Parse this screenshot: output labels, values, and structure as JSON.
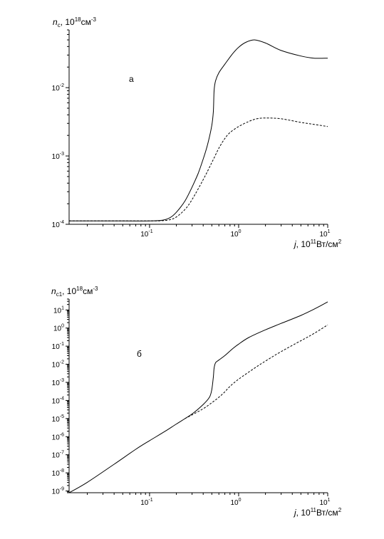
{
  "chart_data": [
    {
      "type": "line",
      "panel_label": "а",
      "xscale": "log",
      "yscale": "log",
      "xlim": [
        0.0125,
        10
      ],
      "ylim": [
        0.0001,
        0.07
      ],
      "xlabel": {
        "main": "j",
        "mid": ", 10",
        "sup": "11",
        "unit": "Вт/см",
        "unit_sup": "2"
      },
      "ylabel": {
        "main": "n",
        "sub": "c",
        "mid": ", 10",
        "sup": "18",
        "unit": "см",
        "unit_sup": "-3"
      },
      "x_ticks": [
        {
          "base": "10",
          "exp": "-1",
          "value": 0.1
        },
        {
          "base": "10",
          "exp": "0",
          "value": 1
        },
        {
          "base": "10",
          "exp": "1",
          "value": 10
        }
      ],
      "y_ticks": [
        {
          "base": "10",
          "exp": "-4",
          "value": 0.0001
        },
        {
          "base": "10",
          "exp": "-3",
          "value": 0.001
        },
        {
          "base": "10",
          "exp": "-2",
          "value": 0.01
        }
      ],
      "series": [
        {
          "style": "solid",
          "x": [
            0.0125,
            0.05,
            0.1,
            0.14,
            0.17,
            0.2,
            0.25,
            0.3,
            0.35,
            0.4,
            0.45,
            0.5,
            0.52,
            0.53,
            0.55,
            0.6,
            0.7,
            0.85,
            1.0,
            1.2,
            1.5,
            2.0,
            3.0,
            5.0,
            7.0,
            10.0
          ],
          "y": [
            0.000112,
            0.000112,
            0.000112,
            0.000115,
            0.000125,
            0.00015,
            0.00022,
            0.00035,
            0.00055,
            0.0009,
            0.0015,
            0.0028,
            0.0045,
            0.009,
            0.0125,
            0.0165,
            0.022,
            0.031,
            0.039,
            0.046,
            0.05,
            0.045,
            0.035,
            0.029,
            0.027,
            0.027
          ]
        },
        {
          "style": "dashed",
          "x": [
            0.0125,
            0.1,
            0.14,
            0.17,
            0.2,
            0.25,
            0.3,
            0.4,
            0.5,
            0.6,
            0.7,
            0.8,
            1.0,
            1.3,
            1.6,
            2.0,
            3.0,
            5.0,
            7.0,
            10.0
          ],
          "y": [
            0.000112,
            0.000112,
            0.000113,
            0.000117,
            0.000128,
            0.000165,
            0.00023,
            0.00045,
            0.0008,
            0.0013,
            0.0018,
            0.0022,
            0.0027,
            0.0032,
            0.0035,
            0.0036,
            0.0035,
            0.0031,
            0.0029,
            0.0027
          ]
        }
      ]
    },
    {
      "type": "line",
      "panel_label": "б",
      "xscale": "log",
      "yscale": "log",
      "xlim": [
        0.0125,
        10
      ],
      "ylim": [
        8e-10,
        40
      ],
      "xlabel": {
        "main": "j",
        "mid": ", 10",
        "sup": "11",
        "unit": "Вт/см",
        "unit_sup": "2"
      },
      "ylabel": {
        "main": "n",
        "sub": "c1",
        "mid": ", 10",
        "sup": "18",
        "unit": "см",
        "unit_sup": "-3"
      },
      "x_ticks": [
        {
          "base": "10",
          "exp": "-1",
          "value": 0.1
        },
        {
          "base": "10",
          "exp": "0",
          "value": 1
        },
        {
          "base": "10",
          "exp": "1",
          "value": 10
        }
      ],
      "y_ticks": [
        {
          "base": "10",
          "exp": "-9",
          "value": 1e-09
        },
        {
          "base": "10",
          "exp": "-8",
          "value": 1e-08
        },
        {
          "base": "10",
          "exp": "-7",
          "value": 1e-07
        },
        {
          "base": "10",
          "exp": "-6",
          "value": 1e-06
        },
        {
          "base": "10",
          "exp": "-5",
          "value": 1e-05
        },
        {
          "base": "10",
          "exp": "-4",
          "value": 0.0001
        },
        {
          "base": "10",
          "exp": "-3",
          "value": 0.001
        },
        {
          "base": "10",
          "exp": "-2",
          "value": 0.01
        },
        {
          "base": "10",
          "exp": "-1",
          "value": 0.1
        },
        {
          "base": "10",
          "exp": "0",
          "value": 1
        },
        {
          "base": "10",
          "exp": "1",
          "value": 10
        }
      ],
      "series": [
        {
          "style": "solid",
          "x": [
            0.0125,
            0.02,
            0.04,
            0.07,
            0.1,
            0.15,
            0.2,
            0.3,
            0.4,
            0.47,
            0.5,
            0.52,
            0.53,
            0.55,
            0.6,
            0.7,
            0.85,
            1.0,
            1.3,
            2.0,
            3.0,
            5.0,
            7.0,
            10.0
          ],
          "y": [
            8e-10,
            3e-09,
            3e-08,
            2e-07,
            6e-07,
            2e-06,
            5e-06,
            1.8e-05,
            6e-05,
            0.00015,
            0.0004,
            0.002,
            0.006,
            0.012,
            0.017,
            0.03,
            0.07,
            0.13,
            0.3,
            0.8,
            1.8,
            5.0,
            11.0,
            28.0
          ]
        },
        {
          "style": "dashed",
          "x": [
            0.25,
            0.3,
            0.4,
            0.5,
            0.6,
            0.7,
            0.8,
            1.0,
            1.5,
            2.0,
            3.0,
            5.0,
            7.0,
            10.0
          ],
          "y": [
            1e-05,
            1.6e-05,
            3.5e-05,
            7.5e-05,
            0.00015,
            0.0003,
            0.0006,
            0.0015,
            0.006,
            0.015,
            0.05,
            0.2,
            0.5,
            1.5
          ]
        }
      ]
    }
  ]
}
